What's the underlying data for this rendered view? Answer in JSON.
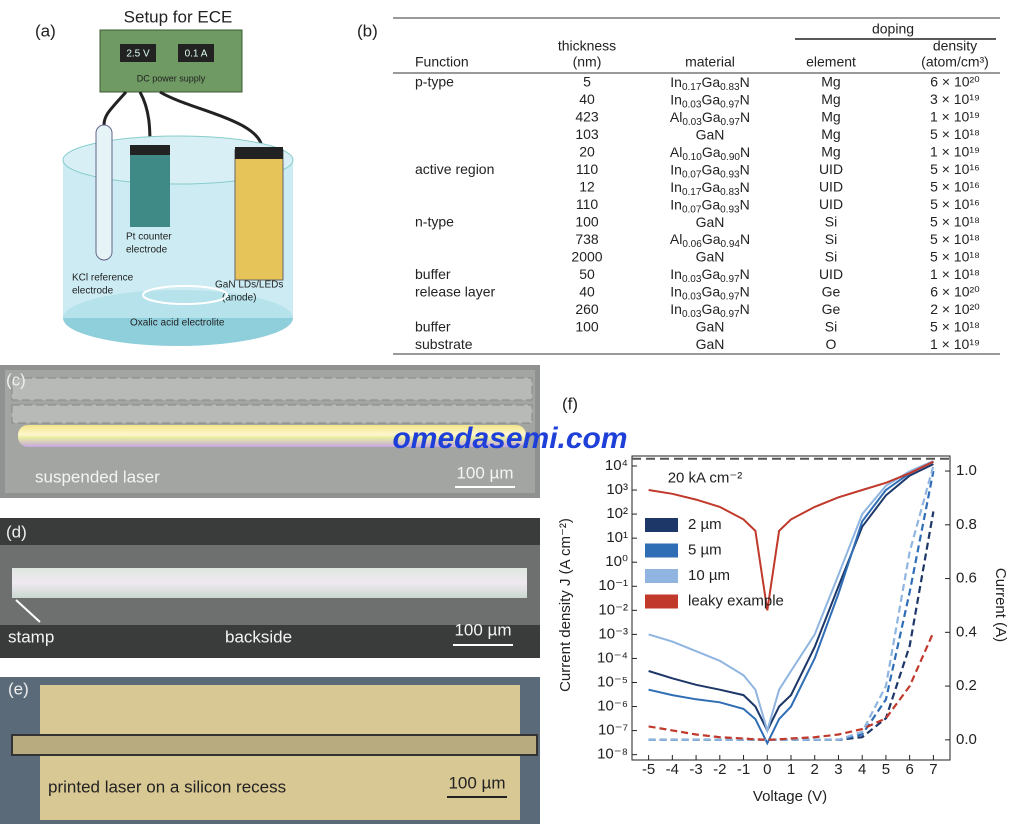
{
  "panel_a": {
    "label": "(a)",
    "title": "Setup for ECE",
    "voltage": "2.5 V",
    "current": "0.1 A",
    "supply": "DC power supply",
    "counter": [
      "Pt counter",
      "electrode"
    ],
    "reference": [
      "KCl reference",
      "electrode"
    ],
    "anode": [
      "GaN LDs/LEDs",
      "(anode)"
    ],
    "electrolyte": "Oxalic acid electrolite"
  },
  "table": {
    "label": "(b)",
    "group_header": "doping",
    "headers": [
      [
        "Function"
      ],
      [
        "thickness",
        "(nm)"
      ],
      [
        "material"
      ],
      [
        "element"
      ],
      [
        "density",
        "(atom/cm³)"
      ]
    ],
    "rows": [
      [
        "p-type",
        5,
        "In0.17Ga0.83N",
        "Mg",
        "6 × 10²⁰"
      ],
      [
        null,
        40,
        "In0.03Ga0.97N",
        "Mg",
        "3 × 10¹⁹"
      ],
      [
        null,
        423,
        "Al0.03Ga0.97N",
        "Mg",
        "1 × 10¹⁹"
      ],
      [
        null,
        103,
        "GaN",
        "Mg",
        "5 × 10¹⁸"
      ],
      [
        null,
        20,
        "Al0.10Ga0.90N",
        "Mg",
        "1 × 10¹⁹"
      ],
      [
        "active region",
        110,
        "In0.07Ga0.93N",
        "UID",
        "5 × 10¹⁶"
      ],
      [
        null,
        12,
        "In0.17Ga0.83N",
        "UID",
        "5 × 10¹⁶"
      ],
      [
        null,
        110,
        "In0.07Ga0.93N",
        "UID",
        "5 × 10¹⁶"
      ],
      [
        "n-type",
        100,
        "GaN",
        "Si",
        "5 × 10¹⁸"
      ],
      [
        null,
        738,
        "Al0.06Ga0.94N",
        "Si",
        "5 × 10¹⁸"
      ],
      [
        null,
        2000,
        "GaN",
        "Si",
        "5 × 10¹⁸"
      ],
      [
        "buffer",
        50,
        "In0.03Ga0.97N",
        "UID",
        "1 × 10¹⁸"
      ],
      [
        "release layer",
        40,
        "In0.03Ga0.97N",
        "Ge",
        "6 × 10²⁰"
      ],
      [
        null,
        260,
        "In0.03Ga0.97N",
        "Ge",
        "2 × 10²⁰"
      ],
      [
        "buffer",
        100,
        "GaN",
        "Si",
        "5 × 10¹⁸"
      ],
      [
        "substrate",
        null,
        "GaN",
        "O",
        "1 × 10¹⁹"
      ]
    ]
  },
  "micrographs": [
    {
      "label": "(c)",
      "caption": "suspended laser",
      "scale": "100 µm"
    },
    {
      "label": "(d)",
      "caption": "backside",
      "note": "stamp",
      "scale": "100 µm"
    },
    {
      "label": "(e)",
      "caption": "printed laser on a silicon recess",
      "scale": "100 µm"
    }
  ],
  "watermark": "omedasemi.com",
  "chart_data": {
    "type": "line",
    "label": "(f)",
    "x_label": "Voltage (V)",
    "y_label": "Current density J (A cm⁻²)",
    "y2_label": "Current (A)",
    "ylog": true,
    "legend": "upper left",
    "x": [
      -5,
      -4,
      -3,
      -2,
      -1,
      -0.5,
      0,
      0.5,
      1,
      2,
      3,
      4,
      5,
      6,
      7
    ],
    "xlim": [
      -5.7,
      7.7
    ],
    "xticks": [
      -5,
      -4,
      -3,
      -2,
      -1,
      0,
      1,
      2,
      3,
      4,
      5,
      6,
      7
    ],
    "ylim": [
      6e-09,
      26000
    ],
    "yticks": [
      {
        "value": 1e-08,
        "label": "10⁻⁸"
      },
      {
        "value": 1e-07,
        "label": "10⁻⁷"
      },
      {
        "value": 1e-06,
        "label": "10⁻⁶"
      },
      {
        "value": 1e-05,
        "label": "10⁻⁵"
      },
      {
        "value": 0.0001,
        "label": "10⁻⁴"
      },
      {
        "value": 0.001,
        "label": "10⁻³"
      },
      {
        "value": 0.01,
        "label": "10⁻²"
      },
      {
        "value": 0.1,
        "label": "10⁻¹"
      },
      {
        "value": 1,
        "label": "10⁰"
      },
      {
        "value": 10,
        "label": "10¹"
      },
      {
        "value": 100,
        "label": "10²"
      },
      {
        "value": 1000,
        "label": "10³"
      },
      {
        "value": 10000,
        "label": "10⁴"
      }
    ],
    "y2lim": [
      -0.075,
      1.056
    ],
    "y2ticks": [
      {
        "value": 0,
        "label": "0.0"
      },
      0.2,
      0.4,
      0.6,
      0.8,
      {
        "value": 1,
        "label": "1.0"
      }
    ],
    "reference_line": {
      "value": 20000,
      "label": "20 kA cm⁻²"
    },
    "series": [
      {
        "name": "2 µm",
        "color": "#1c3768",
        "values": [
          3e-05,
          1.5e-05,
          8e-06,
          5e-06,
          3e-06,
          1e-06,
          1e-07,
          1e-06,
          3e-06,
          0.0003,
          0.1,
          30,
          600,
          4000,
          12000
        ],
        "current": [
          0,
          0,
          0,
          0,
          0,
          0,
          0,
          0,
          0,
          0,
          0,
          0.01,
          0.08,
          0.35,
          0.85
        ]
      },
      {
        "name": "5 µm",
        "color": "#2f6db5",
        "values": [
          5e-06,
          3e-06,
          2e-06,
          1.5e-06,
          8e-07,
          3e-07,
          3e-08,
          3e-07,
          1e-06,
          0.0001,
          0.05,
          50,
          1000,
          5000,
          15000
        ],
        "current": [
          0,
          0,
          0,
          0,
          0,
          0,
          0,
          0,
          0,
          0,
          0,
          0.02,
          0.15,
          0.55,
          1.0
        ]
      },
      {
        "name": "10 µm",
        "color": "#8fb5e0",
        "values": [
          0.001,
          0.0005,
          0.0002,
          8e-05,
          2e-05,
          5e-06,
          1e-07,
          5e-06,
          3e-05,
          0.001,
          0.3,
          100,
          1500,
          6000,
          16000
        ],
        "current": [
          0,
          0,
          0,
          0,
          0,
          0,
          0,
          0,
          0,
          0,
          0,
          0.03,
          0.2,
          0.7,
          1.02
        ]
      },
      {
        "name": "leaky example",
        "color": "#c0392b",
        "values": [
          1000,
          700,
          400,
          200,
          60,
          20,
          0.01,
          20,
          60,
          200,
          500,
          1000,
          2000,
          5000,
          15000
        ],
        "current": [
          0.05,
          0.035,
          0.02,
          0.01,
          0.005,
          0.002,
          0,
          0.002,
          0.005,
          0.01,
          0.02,
          0.04,
          0.08,
          0.2,
          0.4
        ]
      }
    ]
  }
}
